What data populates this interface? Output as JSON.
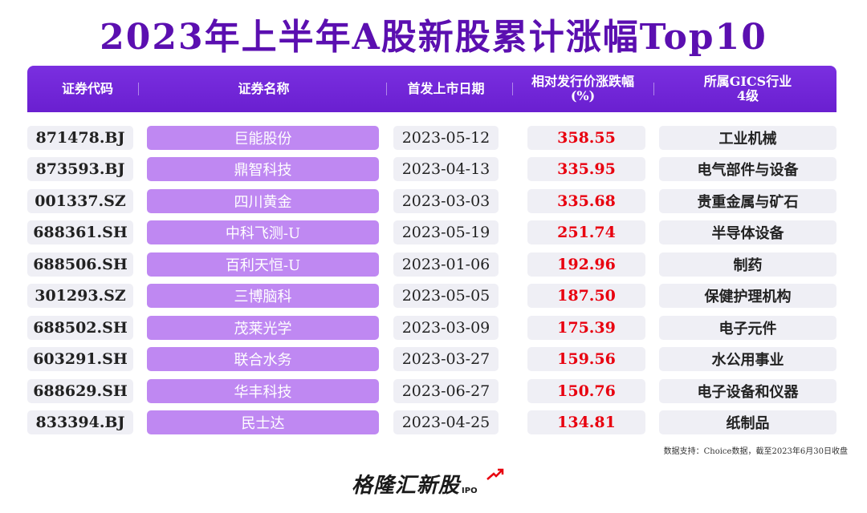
{
  "title": "2023年上半年A股新股累计涨幅Top10",
  "headers": {
    "code": "证券代码",
    "name": "证券名称",
    "date": "首发上市日期",
    "pct_line1": "相对发行价涨跌幅",
    "pct_line2": "(%)",
    "industry_line1": "所属GICS行业",
    "industry_line2": "4级"
  },
  "rows": [
    {
      "code": "871478.BJ",
      "name": "巨能股份",
      "date": "2023-05-12",
      "pct": "358.55",
      "industry": "工业机械"
    },
    {
      "code": "873593.BJ",
      "name": "鼎智科技",
      "date": "2023-04-13",
      "pct": "335.95",
      "industry": "电气部件与设备"
    },
    {
      "code": "001337.SZ",
      "name": "四川黄金",
      "date": "2023-03-03",
      "pct": "335.68",
      "industry": "贵重金属与矿石"
    },
    {
      "code": "688361.SH",
      "name": "中科飞测-U",
      "date": "2023-05-19",
      "pct": "251.74",
      "industry": "半导体设备"
    },
    {
      "code": "688506.SH",
      "name": "百利天恒-U",
      "date": "2023-01-06",
      "pct": "192.96",
      "industry": "制药"
    },
    {
      "code": "301293.SZ",
      "name": "三博脑科",
      "date": "2023-05-05",
      "pct": "187.50",
      "industry": "保健护理机构"
    },
    {
      "code": "688502.SH",
      "name": "茂莱光学",
      "date": "2023-03-09",
      "pct": "175.39",
      "industry": "电子元件"
    },
    {
      "code": "603291.SH",
      "name": "联合水务",
      "date": "2023-03-27",
      "pct": "159.56",
      "industry": "水公用事业"
    },
    {
      "code": "688629.SH",
      "name": "华丰科技",
      "date": "2023-06-27",
      "pct": "150.76",
      "industry": "电子设备和仪器"
    },
    {
      "code": "833394.BJ",
      "name": "民士达",
      "date": "2023-04-25",
      "pct": "134.81",
      "industry": "纸制品"
    }
  ],
  "source": "数据支持：Choice数据，截至2023年6月30日收盘",
  "logo": {
    "text": "格隆汇新股",
    "sub": "IPO"
  },
  "colors": {
    "title": "#5b0fb0",
    "header_bg": "#6a1fd0",
    "name_bg": "#bf88f2",
    "pct": "#e8000f",
    "cell_bg": "#efeff5"
  }
}
